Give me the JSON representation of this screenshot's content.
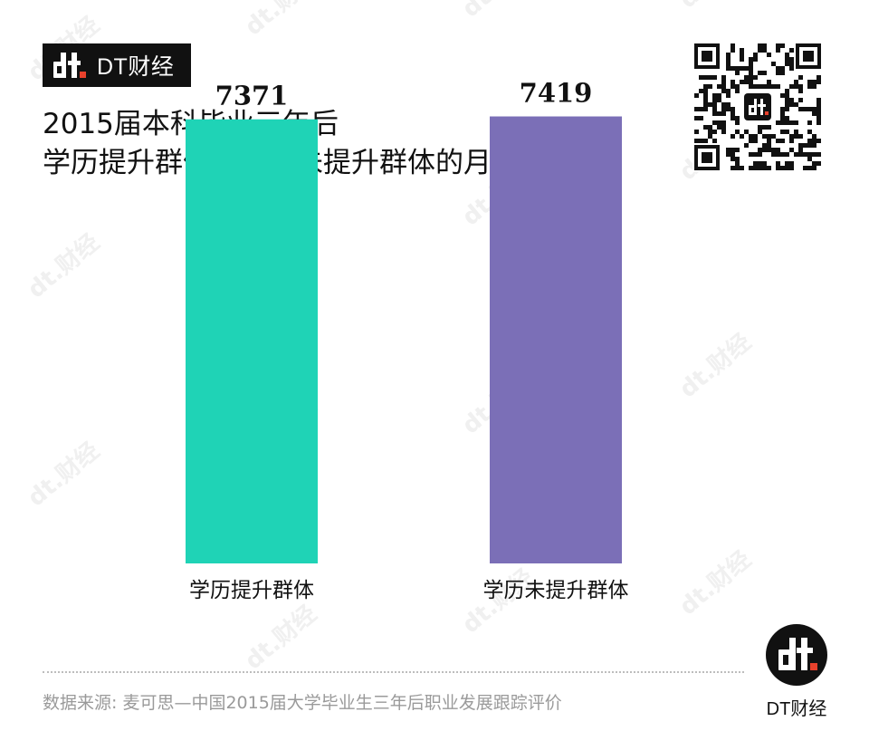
{
  "brand": {
    "name": "DT财经",
    "accent": "#e8412c"
  },
  "title": {
    "line1": "2015届本科毕业三年后",
    "line2": "学历提升群体与学历未提升群体的月收入"
  },
  "chart_data": {
    "type": "bar",
    "categories": [
      "学历提升群体",
      "学历未提升群体"
    ],
    "values": [
      7371,
      7419
    ],
    "colors": [
      "#1fd3b6",
      "#7b6fb7"
    ],
    "data_labels": [
      "7371",
      "7419"
    ],
    "title": "2015届本科毕业三年后 学历提升群体与学历未提升群体的月收入",
    "xlabel": "",
    "ylabel": "",
    "ylim": [
      0,
      8750
    ],
    "grid": false,
    "legend": "none"
  },
  "footer": {
    "source": "数据来源: 麦可思—中国2015届大学毕业生三年后职业发展跟踪评价",
    "logo_caption": "DT财经"
  },
  "watermark": {
    "text": "财经"
  },
  "icons": {
    "qr": "qr-code-icon",
    "logo": "dt-logo-icon"
  }
}
